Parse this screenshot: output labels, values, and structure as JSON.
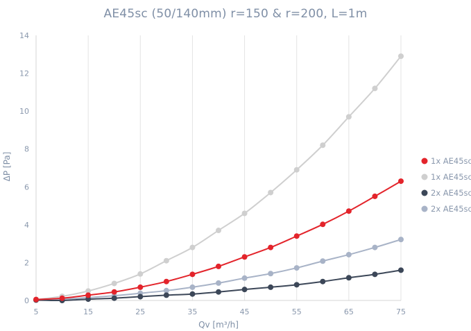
{
  "chart_data": {
    "type": "line",
    "title": "AE45sc (50/140mm) r=150 & r=200, L=1m",
    "xlabel": "Qv [m³/h]",
    "ylabel": "ΔP [Pa]",
    "xlim": [
      5,
      75
    ],
    "ylim": [
      0,
      14
    ],
    "x_ticks": [
      5,
      15,
      25,
      35,
      45,
      55,
      65,
      75
    ],
    "y_ticks": [
      0,
      2,
      4,
      6,
      8,
      10,
      12,
      14
    ],
    "grid": "vertical",
    "legend_position": "right",
    "x": [
      5,
      10,
      15,
      20,
      25,
      30,
      35,
      40,
      45,
      50,
      55,
      60,
      65,
      70,
      75
    ],
    "series": [
      {
        "name": "1x AE45sc",
        "color": "#e3242b",
        "values": [
          0.05,
          0.12,
          0.28,
          0.45,
          0.7,
          1.0,
          1.38,
          1.8,
          2.3,
          2.8,
          3.4,
          4.02,
          4.72,
          5.5,
          6.3
        ]
      },
      {
        "name": "1x AE45sc",
        "color": "#cfcfcf",
        "values": [
          0.05,
          0.22,
          0.5,
          0.9,
          1.4,
          2.1,
          2.8,
          3.7,
          4.6,
          5.7,
          6.9,
          8.2,
          9.7,
          11.2,
          12.9
        ]
      },
      {
        "name": "2x AE45sc",
        "color": "#3c4758",
        "values": [
          0.02,
          0.0,
          0.07,
          0.12,
          0.2,
          0.28,
          0.34,
          0.45,
          0.58,
          0.7,
          0.83,
          1.0,
          1.2,
          1.38,
          1.6
        ]
      },
      {
        "name": "2x AE45sc",
        "color": "#a8b3c7",
        "values": [
          0.03,
          0.07,
          0.15,
          0.25,
          0.38,
          0.52,
          0.7,
          0.92,
          1.18,
          1.42,
          1.72,
          2.08,
          2.42,
          2.8,
          3.22
        ]
      }
    ]
  }
}
